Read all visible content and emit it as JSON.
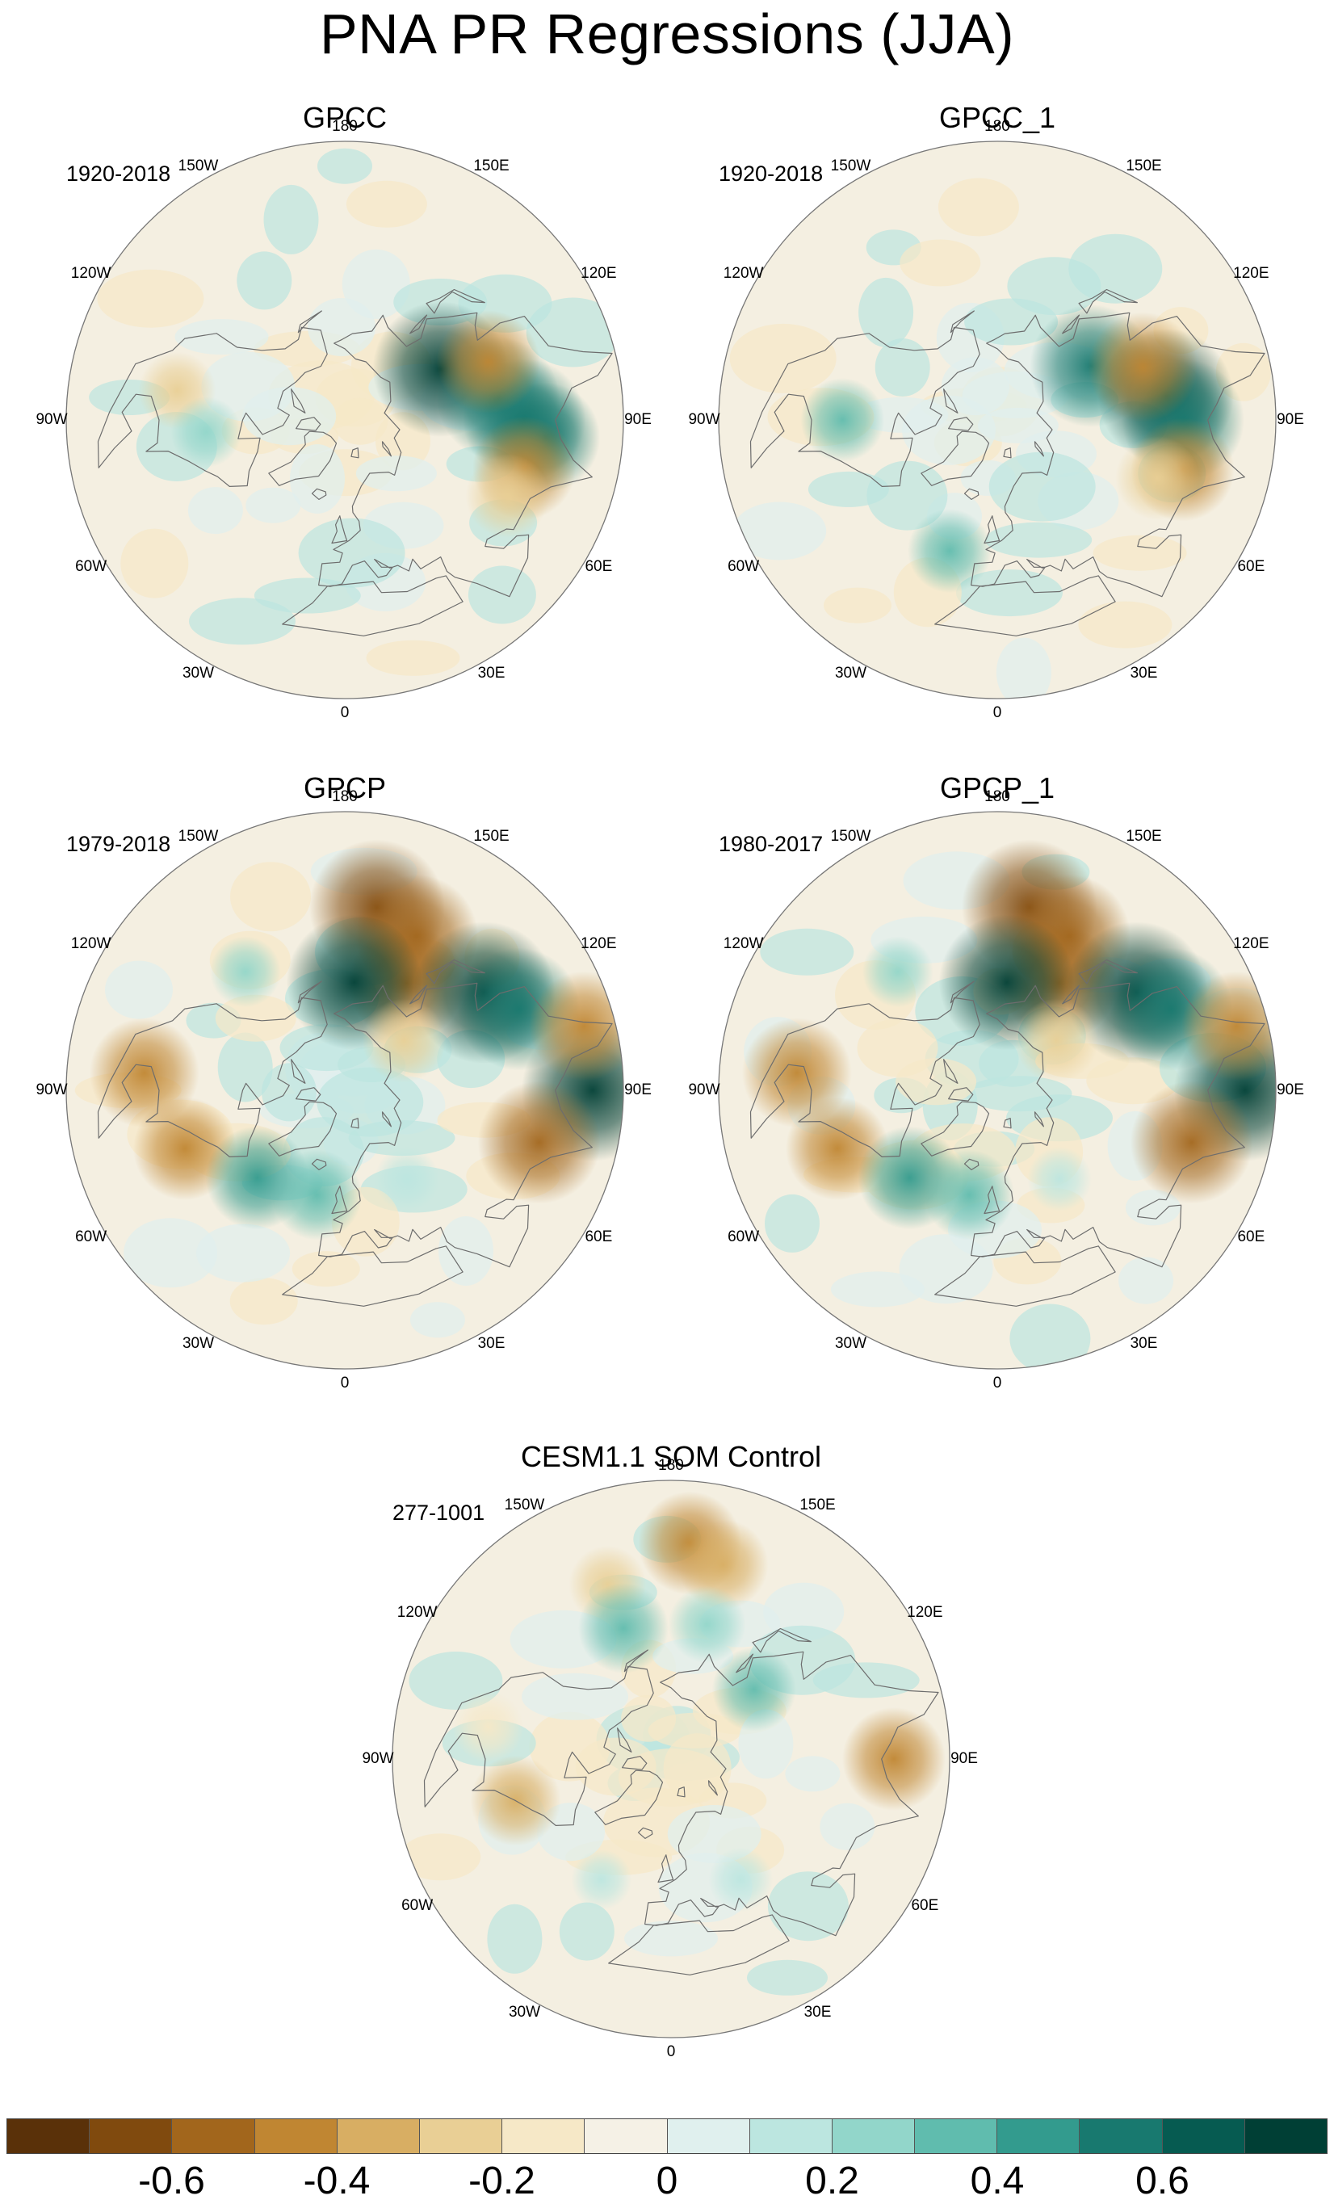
{
  "figure": {
    "title": "PNA PR Regressions (JJA)",
    "lon_labels": [
      "180",
      "150E",
      "120E",
      "90E",
      "60E",
      "30E",
      "0",
      "30W",
      "60W",
      "90W",
      "120W",
      "150W"
    ]
  },
  "panels": [
    {
      "name": "GPCC",
      "period": "1920-2018",
      "anomalies": [
        {
          "lon": 118,
          "lat": 55,
          "value": 0.7
        },
        {
          "lon": 98,
          "lat": 40,
          "value": 0.6
        },
        {
          "lon": 90,
          "lat": 32,
          "value": 0.6
        },
        {
          "lon": 85,
          "lat": 25,
          "value": 0.5
        },
        {
          "lon": 112,
          "lat": 40,
          "value": -0.45
        },
        {
          "lon": 75,
          "lat": 30,
          "value": -0.45
        },
        {
          "lon": 65,
          "lat": 32,
          "value": -0.3
        },
        {
          "lon": -100,
          "lat": 35,
          "value": -0.25
        },
        {
          "lon": -85,
          "lat": 45,
          "value": 0.2
        }
      ]
    },
    {
      "name": "GPCC_1",
      "period": "1920-2018",
      "anomalies": [
        {
          "lon": 120,
          "lat": 55,
          "value": 0.6
        },
        {
          "lon": 98,
          "lat": 35,
          "value": 0.7
        },
        {
          "lon": 90,
          "lat": 30,
          "value": 0.6
        },
        {
          "lon": 110,
          "lat": 40,
          "value": -0.5
        },
        {
          "lon": 75,
          "lat": 28,
          "value": -0.45
        },
        {
          "lon": 70,
          "lat": 35,
          "value": -0.3
        },
        {
          "lon": -90,
          "lat": 40,
          "value": 0.3
        },
        {
          "lon": -20,
          "lat": 45,
          "value": 0.3
        }
      ]
    },
    {
      "name": "GPCP",
      "period": "1979-2018",
      "anomalies": [
        {
          "lon": 170,
          "lat": 30,
          "value": -0.7
        },
        {
          "lon": 155,
          "lat": 35,
          "value": -0.6
        },
        {
          "lon": 150,
          "lat": 50,
          "value": -0.55
        },
        {
          "lon": 175,
          "lat": 55,
          "value": 0.7
        },
        {
          "lon": 125,
          "lat": 35,
          "value": 0.75
        },
        {
          "lon": 115,
          "lat": 28,
          "value": 0.6
        },
        {
          "lon": 90,
          "lat": 10,
          "value": 0.75
        },
        {
          "lon": 75,
          "lat": 25,
          "value": -0.6
        },
        {
          "lon": 105,
          "lat": 10,
          "value": -0.5
        },
        {
          "lon": -95,
          "lat": 25,
          "value": -0.5
        },
        {
          "lon": -70,
          "lat": 35,
          "value": -0.45
        },
        {
          "lon": -45,
          "lat": 50,
          "value": 0.45
        },
        {
          "lon": -15,
          "lat": 55,
          "value": 0.35
        },
        {
          "lon": 130,
          "lat": 65,
          "value": -0.3
        },
        {
          "lon": -140,
          "lat": 40,
          "value": 0.2
        },
        {
          "lon": 35,
          "lat": 55,
          "value": 0.15
        }
      ]
    },
    {
      "name": "GPCP_1",
      "period": "1980-2017",
      "anomalies": [
        {
          "lon": 170,
          "lat": 30,
          "value": -0.7
        },
        {
          "lon": 155,
          "lat": 35,
          "value": -0.6
        },
        {
          "lon": 150,
          "lat": 50,
          "value": -0.55
        },
        {
          "lon": 175,
          "lat": 55,
          "value": 0.7
        },
        {
          "lon": 125,
          "lat": 35,
          "value": 0.75
        },
        {
          "lon": 115,
          "lat": 28,
          "value": 0.6
        },
        {
          "lon": 90,
          "lat": 10,
          "value": 0.75
        },
        {
          "lon": 75,
          "lat": 25,
          "value": -0.6
        },
        {
          "lon": 105,
          "lat": 10,
          "value": -0.5
        },
        {
          "lon": -95,
          "lat": 25,
          "value": -0.5
        },
        {
          "lon": -70,
          "lat": 35,
          "value": -0.45
        },
        {
          "lon": -45,
          "lat": 50,
          "value": 0.45
        },
        {
          "lon": -15,
          "lat": 55,
          "value": 0.35
        },
        {
          "lon": 130,
          "lat": 65,
          "value": -0.3
        },
        {
          "lon": -140,
          "lat": 40,
          "value": 0.2
        },
        {
          "lon": 35,
          "lat": 55,
          "value": 0.15
        }
      ]
    },
    {
      "name": "CESM1.1 SOM Control",
      "period": "277-1001",
      "anomalies": [
        {
          "lon": 175,
          "lat": 20,
          "value": -0.45
        },
        {
          "lon": 165,
          "lat": 25,
          "value": -0.35
        },
        {
          "lon": -160,
          "lat": 30,
          "value": -0.25
        },
        {
          "lon": -160,
          "lat": 45,
          "value": 0.35
        },
        {
          "lon": 165,
          "lat": 45,
          "value": 0.25
        },
        {
          "lon": 130,
          "lat": 55,
          "value": 0.3
        },
        {
          "lon": 90,
          "lat": 18,
          "value": -0.45
        },
        {
          "lon": -75,
          "lat": 38,
          "value": -0.35
        },
        {
          "lon": -100,
          "lat": 30,
          "value": -0.2
        },
        {
          "lon": 30,
          "lat": 45,
          "value": 0.15
        },
        {
          "lon": -30,
          "lat": 45,
          "value": 0.12
        }
      ]
    }
  ],
  "colorbar": {
    "colors": [
      "#5a3109",
      "#804a0e",
      "#a2661c",
      "#c08632",
      "#d8ae63",
      "#e9cf95",
      "#f6e8c7",
      "#f5f1e6",
      "#e0f0ee",
      "#bce6e0",
      "#92d6ca",
      "#60bcae",
      "#339b8e",
      "#18796f",
      "#065b51",
      "#003f35"
    ],
    "ticks": [
      "-0.6",
      "-0.4",
      "-0.2",
      "0",
      "0.2",
      "0.4",
      "0.6"
    ],
    "tick_values": [
      -0.6,
      -0.4,
      -0.2,
      0,
      0.2,
      0.4,
      0.6
    ],
    "min": -0.8,
    "max": 0.8
  },
  "chart_data": {
    "type": "heatmap",
    "title": "PNA PR Regressions (JJA)",
    "colorbar_ticks": [
      -0.6,
      -0.4,
      -0.2,
      0,
      0.2,
      0.4,
      0.6
    ],
    "colorbar_range": [
      -0.8,
      0.8
    ],
    "panels": [
      "GPCC",
      "GPCC_1",
      "GPCP",
      "GPCP_1",
      "CESM1.1 SOM Control"
    ],
    "periods": [
      "1920-2018",
      "1920-2018",
      "1979-2018",
      "1980-2017",
      "277-1001"
    ]
  }
}
